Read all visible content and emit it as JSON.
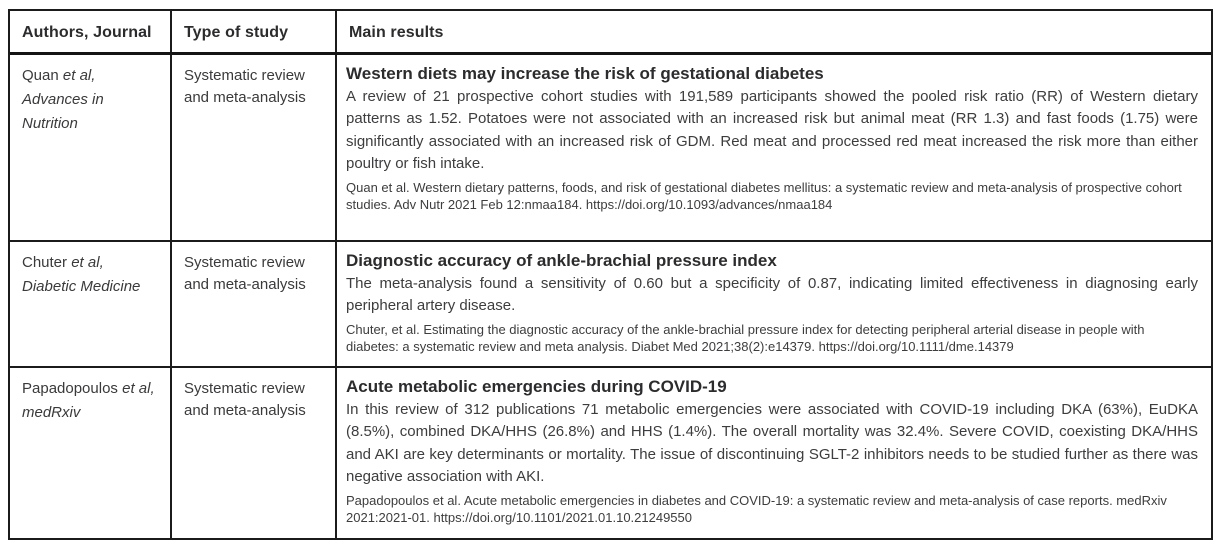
{
  "page": {
    "background": "#ffffff"
  },
  "table": {
    "border_color": "#1b1b1b",
    "headers": [
      "Authors, Journal",
      "Type of study",
      "Main results"
    ]
  },
  "rows": [
    {
      "author_name": "Quan",
      "author_etal": "et al,",
      "journal": "Advances in Nutrition",
      "study_type": "Systematic review and meta-analysis",
      "title": "Western diets may increase the risk of gestational diabetes",
      "body": "A review of 21 prospective cohort studies with 191,589 participants showed the pooled risk ratio (RR) of Western dietary patterns as 1.52. Potatoes were not associated with an increased risk but animal meat (RR 1.3) and fast foods (1.75) were significantly associated with an increased risk of GDM. Red meat and processed red meat increased the risk more than either poultry or fish intake.",
      "citation": "Quan et al. Western dietary patterns, foods, and risk of gestational diabetes mellitus: a systematic review and meta-analysis of prospective cohort studies. Adv Nutr 2021 Feb 12:nmaa184. https://doi.org/10.1093/advances/nmaa184"
    },
    {
      "author_name": "Chuter",
      "author_etal": "et al,",
      "journal": "Diabetic Medicine",
      "study_type": "Systematic review and meta-analysis",
      "title": "Diagnostic accuracy of ankle-brachial pressure index",
      "body": "The meta-analysis found a sensitivity of 0.60 but a specificity of 0.87, indicating limited effectiveness in diagnosing early peripheral artery disease.",
      "citation": "Chuter, et al. Estimating the diagnostic accuracy of the ankle-brachial pressure index for detecting peripheral arterial disease in people with diabetes: a systematic review and meta analysis. Diabet Med 2021;38(2):e14379. https://doi.org/10.1111/dme.14379"
    },
    {
      "author_name": "Papadopoulos",
      "author_etal": "et al,",
      "journal": "medRxiv",
      "study_type": "Systematic review and meta-analysis",
      "title": "Acute metabolic emergencies during COVID-19",
      "body": "In this review of 312 publications 71 metabolic emergencies were associated with COVID-19 including DKA (63%), EuDKA (8.5%), combined DKA/HHS (26.8%) and HHS (1.4%). The overall mortality was 32.4%. Severe COVID, coexisting DKA/HHS and AKI are key determinants or mortality. The issue of discontinuing SGLT-2 inhibitors needs to be studied further as there was negative association with AKI.",
      "citation": "Papadopoulos et al. Acute metabolic emergencies in diabetes and COVID-19: a systematic review and meta-analysis of case reports. medRxiv 2021:2021-01. https://doi.org/10.1101/2021.01.10.21249550"
    }
  ]
}
